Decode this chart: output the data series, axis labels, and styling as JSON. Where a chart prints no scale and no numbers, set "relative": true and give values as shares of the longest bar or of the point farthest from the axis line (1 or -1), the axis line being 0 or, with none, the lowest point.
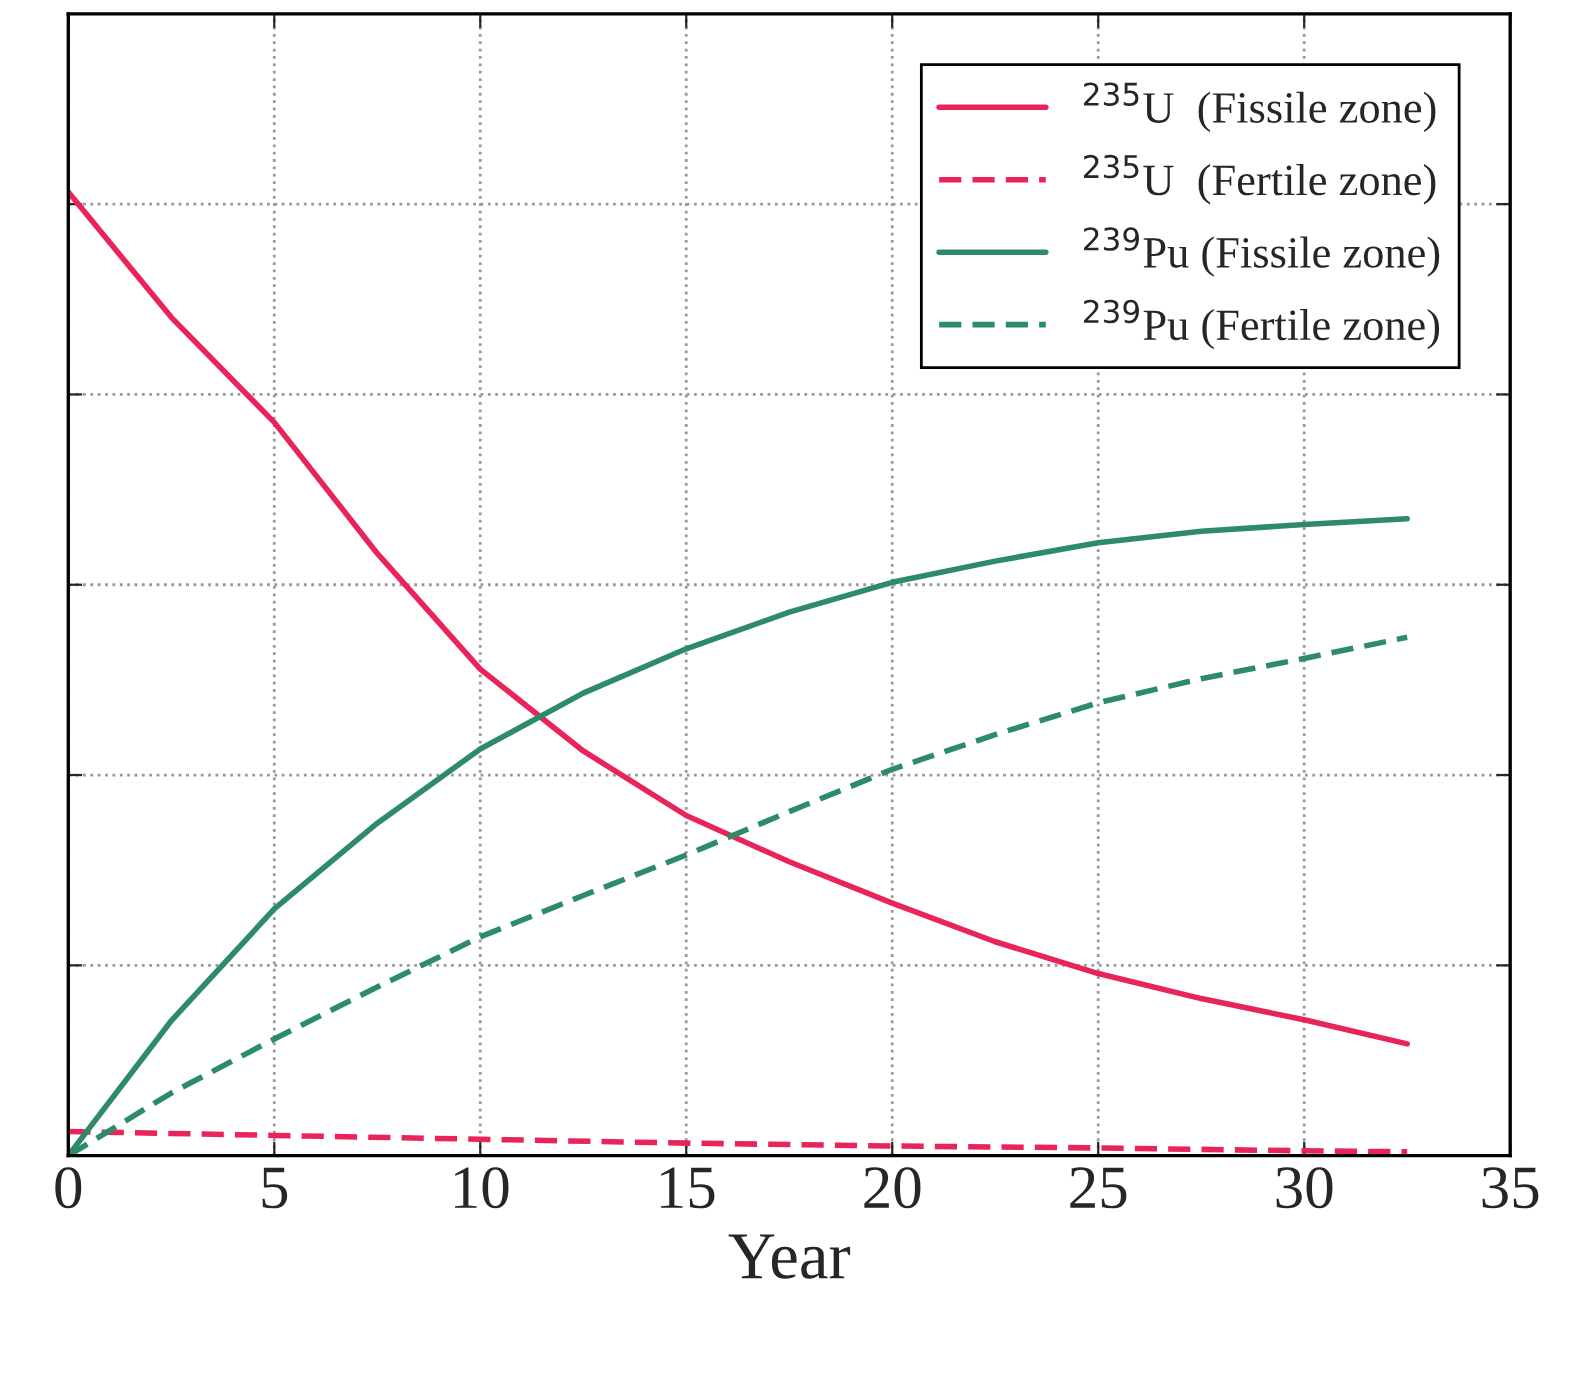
{
  "chart_data": {
    "type": "line",
    "relative": true,
    "xlabel": "Year",
    "xlim": [
      0,
      35
    ],
    "xticks": [
      0,
      5,
      10,
      15,
      20,
      25,
      30,
      35
    ],
    "grid": true,
    "legend": "top right",
    "tick_labels": "x",
    "series": [
      {
        "name": "$^{235}$U  (Fissile zone)",
        "color": "#e8245a",
        "line_style": "solid",
        "x": [
          0,
          2.5,
          5,
          7.5,
          10,
          12.5,
          15,
          17.5,
          20,
          22.5,
          25,
          27.5,
          30,
          32.5
        ],
        "values": [
          1,
          0.87,
          0.761,
          0.625,
          0.505,
          0.42,
          0.353,
          0.305,
          0.262,
          0.222,
          0.189,
          0.163,
          0.141,
          0.116
        ]
      },
      {
        "name": "$^{235}$U  (Fertile zone)",
        "color": "#e8245a",
        "line_style": "dashed",
        "x": [
          0,
          5,
          10,
          15,
          20,
          25,
          30,
          32.5
        ],
        "values": [
          0.025,
          0.021,
          0.017,
          0.013,
          0.01,
          0.008,
          0.005,
          0.004
        ]
      },
      {
        "name": "$^{239}$Pu (Fissile zone)",
        "color": "#2e8b68",
        "line_style": "solid",
        "x": [
          0,
          2.5,
          5,
          7.5,
          10,
          12.5,
          15,
          17.5,
          20,
          22.5,
          25,
          27.5,
          30,
          32.5
        ],
        "values": [
          0,
          0.14,
          0.256,
          0.345,
          0.422,
          0.48,
          0.526,
          0.564,
          0.595,
          0.617,
          0.636,
          0.648,
          0.655,
          0.661
        ]
      },
      {
        "name": "$^{239}$Pu (Fertile zone)",
        "color": "#2e8b68",
        "line_style": "dashed",
        "x": [
          0,
          2.5,
          5,
          7.5,
          10,
          12.5,
          15,
          17.5,
          20,
          22.5,
          25,
          27.5,
          30,
          32.5
        ],
        "values": [
          0,
          0.065,
          0.121,
          0.175,
          0.227,
          0.27,
          0.312,
          0.357,
          0.401,
          0.437,
          0.47,
          0.495,
          0.516,
          0.538
        ]
      }
    ]
  }
}
